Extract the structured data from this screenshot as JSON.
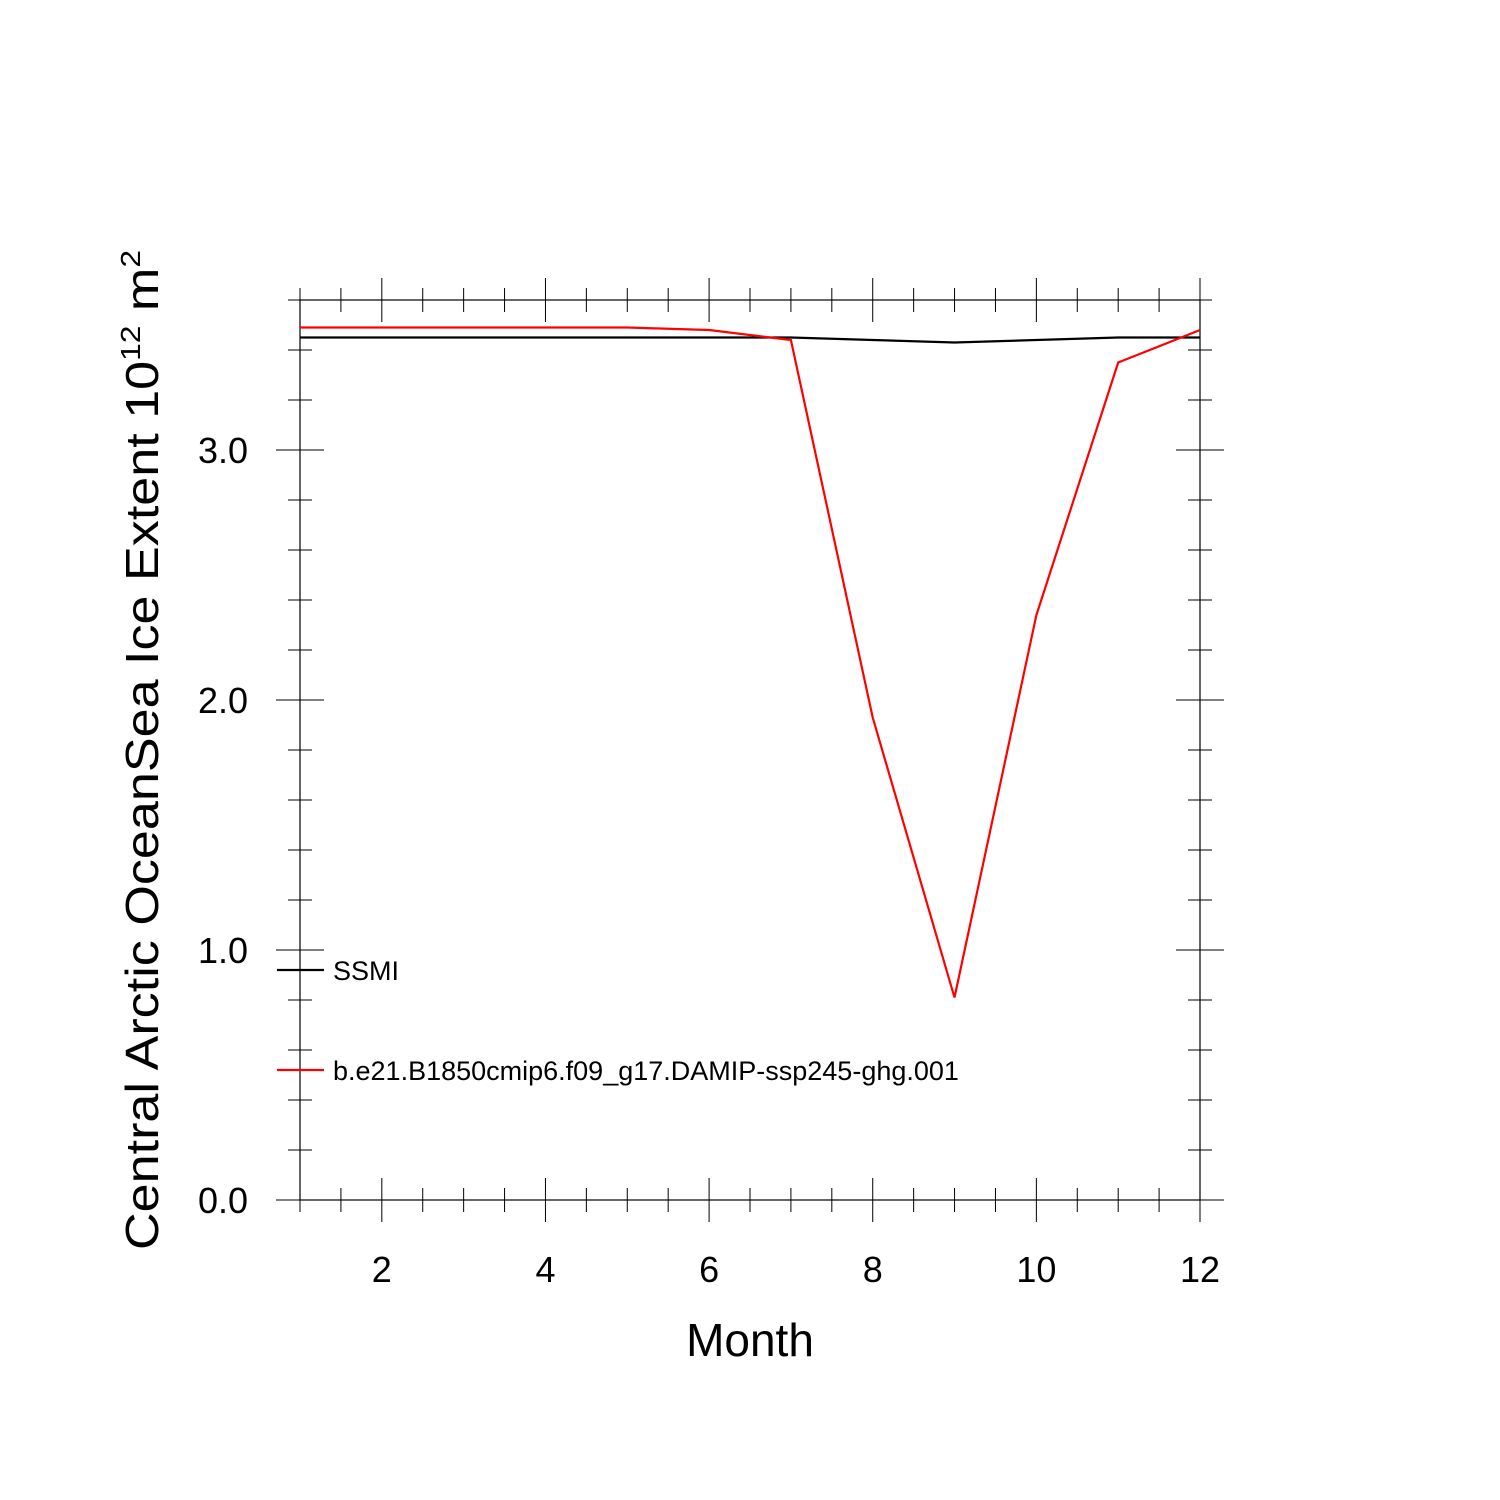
{
  "chart_data": {
    "type": "line",
    "title": "",
    "xlabel": "Month",
    "ylabel": {
      "text": "Central Arctic OceanSea Ice Extent 10",
      "exp": "12",
      "unit_text": " m",
      "unit_exp": "2"
    },
    "xlim": [
      1,
      12
    ],
    "ylim": [
      0,
      3.6
    ],
    "xticks": [
      2,
      4,
      6,
      8,
      10,
      12
    ],
    "xtick_labels": [
      "2",
      "4",
      "6",
      "8",
      "10",
      "12"
    ],
    "yticks": [
      0,
      1,
      2,
      3
    ],
    "ytick_labels": [
      "0.0",
      "1.0",
      "2.0",
      "3.0"
    ],
    "x_minor_step": 0.5,
    "y_minor_step": 0.2,
    "grid": false,
    "legend_position": "lower-left",
    "x": [
      1,
      2,
      3,
      4,
      5,
      6,
      7,
      8,
      9,
      10,
      11,
      12
    ],
    "series": [
      {
        "name": "SSMI",
        "color": "#000000",
        "values": [
          3.45,
          3.45,
          3.45,
          3.45,
          3.45,
          3.45,
          3.45,
          3.44,
          3.43,
          3.44,
          3.45,
          3.45
        ]
      },
      {
        "name": "b.e21.B1850cmip6.f09_g17.DAMIP-ssp245-ghg.001",
        "color": "#ff0000",
        "values": [
          3.49,
          3.49,
          3.49,
          3.49,
          3.49,
          3.48,
          3.44,
          1.93,
          0.81,
          2.34,
          3.35,
          3.48
        ]
      }
    ]
  }
}
